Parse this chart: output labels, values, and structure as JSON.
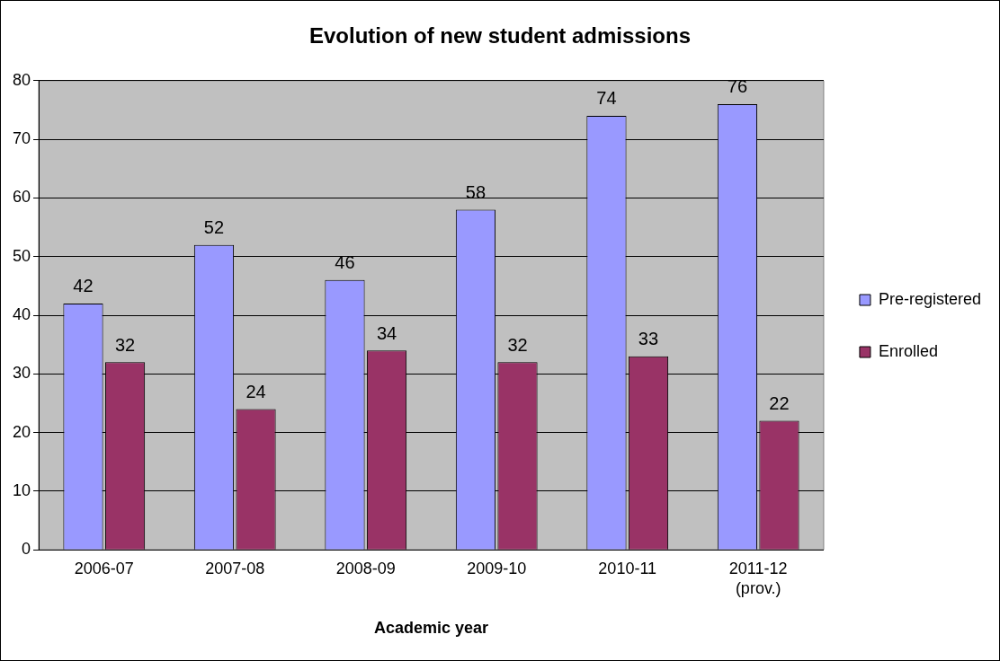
{
  "chart_data": {
    "type": "bar",
    "title": "Evolution of new student admissions",
    "xlabel": "Academic year",
    "categories": [
      "2006-07",
      "2007-08",
      "2008-09",
      "2009-10",
      "2010-11",
      "2011-12 (prov.)"
    ],
    "series": [
      {
        "name": "Pre-registered",
        "color": "#9999ff",
        "values": [
          42,
          52,
          46,
          58,
          74,
          76
        ]
      },
      {
        "name": "Enrolled",
        "color": "#993366",
        "values": [
          32,
          24,
          34,
          32,
          33,
          22
        ]
      }
    ],
    "ylim": [
      0,
      80
    ],
    "yticks": [
      0,
      10,
      20,
      30,
      40,
      50,
      60,
      70,
      80
    ],
    "grid": "y",
    "legend": "right",
    "data_labels": true
  }
}
